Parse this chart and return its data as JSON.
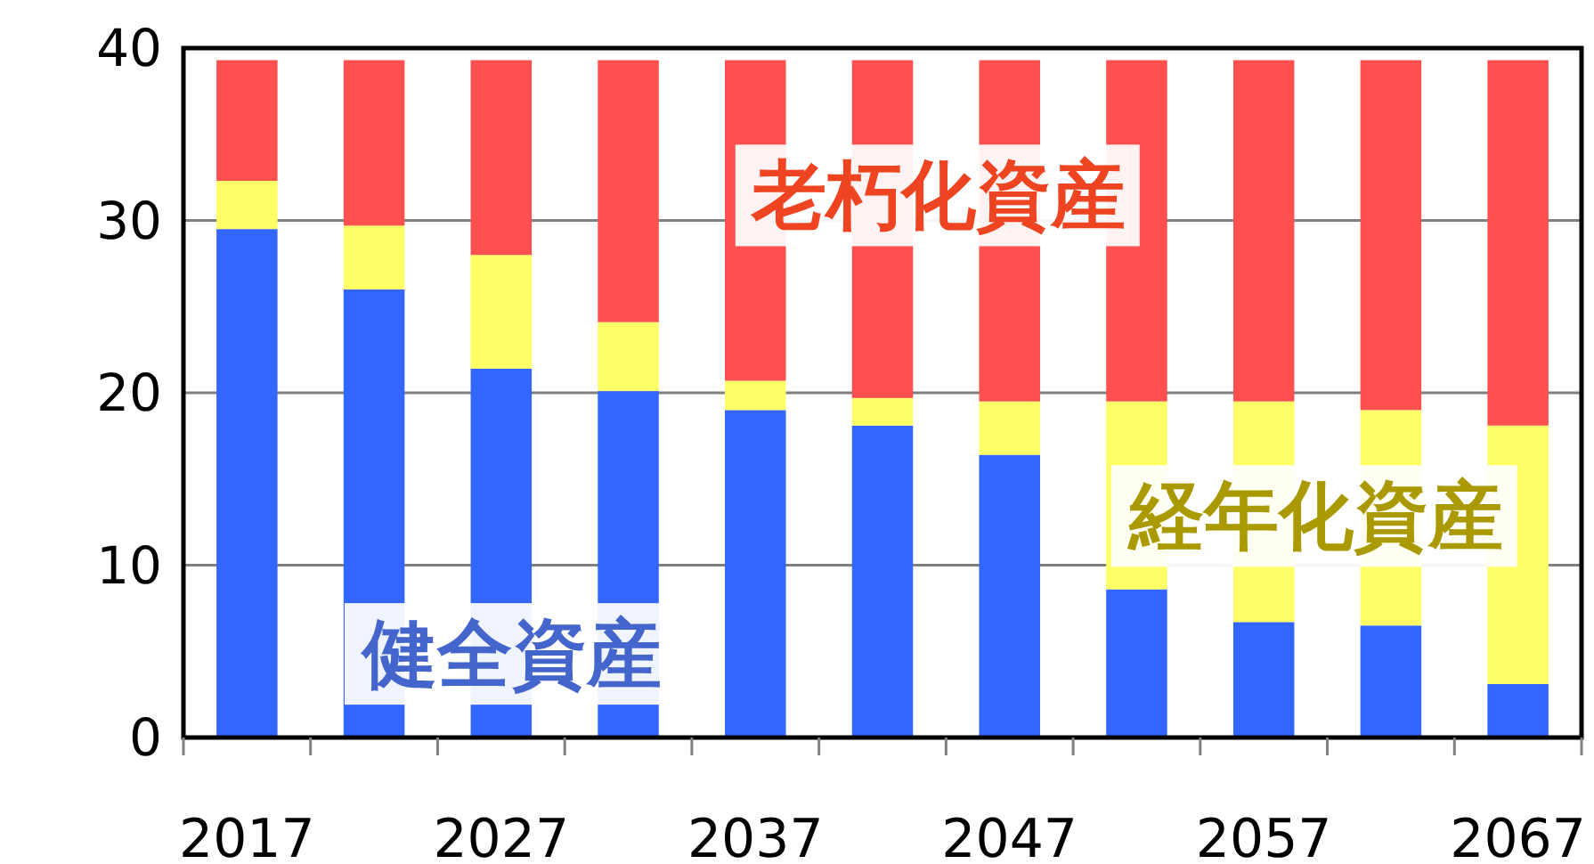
{
  "chart_data": {
    "type": "bar",
    "stacked": true,
    "categories": [
      "2017",
      null,
      "2027",
      null,
      "2037",
      null,
      "2047",
      null,
      "2057",
      null,
      "2067"
    ],
    "series": [
      {
        "name": "健全資産",
        "color": "#3366ff",
        "values": [
          29.5,
          26.0,
          21.4,
          20.1,
          19.0,
          18.1,
          16.4,
          8.6,
          6.7,
          6.5,
          3.1
        ]
      },
      {
        "name": "経年化資産",
        "color": "#ffff66",
        "values": [
          2.8,
          3.7,
          6.6,
          4.0,
          1.7,
          1.6,
          3.1,
          10.9,
          12.8,
          12.5,
          15.0
        ]
      },
      {
        "name": "老朽化資産",
        "color": "#ff5050",
        "values": [
          7.0,
          9.6,
          11.3,
          15.2,
          18.6,
          19.6,
          19.8,
          19.8,
          19.8,
          20.3,
          21.2
        ]
      }
    ],
    "ylim": [
      0,
      40
    ],
    "yticks": [
      0,
      10,
      20,
      30,
      40
    ],
    "grid": "y",
    "legend": false
  }
}
